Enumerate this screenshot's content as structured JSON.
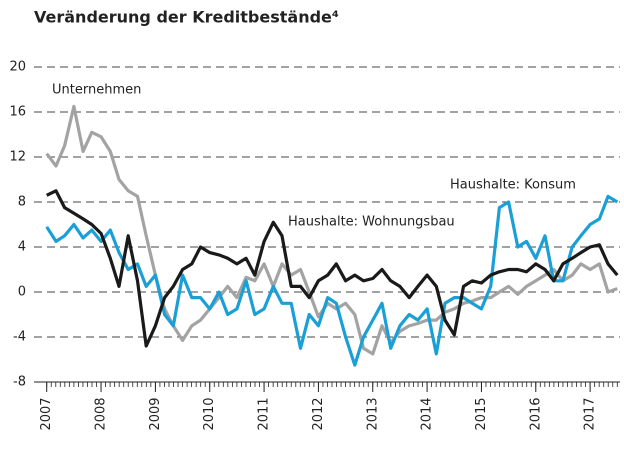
{
  "chart_data": {
    "type": "line",
    "title": "Veränderung der Kreditbestände⁴",
    "x": [
      2007,
      2007.17,
      2007.33,
      2007.5,
      2007.67,
      2007.83,
      2008,
      2008.17,
      2008.33,
      2008.5,
      2008.67,
      2008.83,
      2009,
      2009.17,
      2009.33,
      2009.5,
      2009.67,
      2009.83,
      2010,
      2010.17,
      2010.33,
      2010.5,
      2010.67,
      2010.83,
      2011,
      2011.17,
      2011.33,
      2011.5,
      2011.67,
      2011.83,
      2012,
      2012.17,
      2012.33,
      2012.5,
      2012.67,
      2012.83,
      2013,
      2013.17,
      2013.33,
      2013.5,
      2013.67,
      2013.83,
      2014,
      2014.17,
      2014.33,
      2014.5,
      2014.67,
      2014.83,
      2015,
      2015.17,
      2015.33,
      2015.5,
      2015.67,
      2015.83,
      2016,
      2016.17,
      2016.33,
      2016.5,
      2016.67,
      2016.83,
      2017,
      2017.17,
      2017.33,
      2017.5
    ],
    "series": [
      {
        "name": "Unternehmen",
        "color": "#a3a3a3",
        "values": [
          12.3,
          11.2,
          13,
          16.5,
          12.5,
          14.2,
          13.8,
          12.5,
          10,
          9,
          8.5,
          5,
          1.5,
          -1.5,
          -3,
          -4.3,
          -3,
          -2.5,
          -1.5,
          -0.5,
          0.5,
          -0.5,
          1.3,
          1,
          2.5,
          0.5,
          2.5,
          1.5,
          2,
          0,
          -2.2,
          -1,
          -1.5,
          -1,
          -2,
          -5,
          -5.5,
          -3,
          -4.5,
          -3.5,
          -3,
          -2.8,
          -2.5,
          -2.5,
          -1.8,
          -1.5,
          -1,
          -0.8,
          -0.5,
          -0.5,
          0,
          0.5,
          -0.2,
          0.5,
          1,
          1.5,
          2,
          1,
          1.5,
          2.5,
          2,
          2.5,
          0,
          0.3
        ]
      },
      {
        "name": "Haushalte: Konsum",
        "color": "#1aa0d6",
        "values": [
          5.8,
          4.5,
          5,
          6,
          4.8,
          5.5,
          4.5,
          5.5,
          3.5,
          2,
          2.5,
          0.5,
          1.5,
          -2,
          -3,
          1.5,
          -0.5,
          -0.5,
          -1.5,
          0,
          -2,
          -1.5,
          1,
          -2,
          -1.5,
          0.5,
          -1,
          -1,
          -5,
          -2,
          -3,
          -0.5,
          -1,
          -4,
          -6.5,
          -4,
          -2.5,
          -1,
          -5,
          -3,
          -2,
          -2.5,
          -1.5,
          -5.5,
          -1,
          -0.5,
          -0.5,
          -1,
          -1.5,
          0.5,
          7.5,
          8,
          4,
          4.5,
          3,
          5,
          1,
          1,
          4,
          5,
          6,
          6.5,
          8.5,
          8
        ]
      },
      {
        "name": "Haushalte: Wohnungsbau",
        "color": "#1a1a1a",
        "values": [
          8.6,
          9,
          7.5,
          7,
          6.5,
          6,
          5.2,
          3,
          0.5,
          5,
          1,
          -4.8,
          -3,
          -0.5,
          0.5,
          2,
          2.5,
          4,
          3.5,
          3.3,
          3,
          2.5,
          3,
          1.5,
          4.5,
          6.2,
          5,
          0.5,
          0.5,
          -0.5,
          1,
          1.5,
          2.5,
          1,
          1.5,
          1,
          1.2,
          2,
          1,
          0.5,
          -0.5,
          0.5,
          1.5,
          0.5,
          -2.5,
          -3.8,
          0.5,
          1,
          0.8,
          1.5,
          1.8,
          2,
          2,
          1.8,
          2.5,
          2,
          1,
          2.5,
          3,
          3.5,
          4,
          4.2,
          2.5,
          1.5
        ]
      }
    ],
    "xlim": [
      2006.95,
      2017.55
    ],
    "xticks": [
      2007,
      2008,
      2009,
      2010,
      2011,
      2012,
      2013,
      2014,
      2015,
      2016,
      2017
    ],
    "ylim": [
      -8,
      20
    ],
    "yticks": [
      -8,
      -4,
      0,
      4,
      8,
      12,
      16,
      20
    ],
    "grid": true
  }
}
